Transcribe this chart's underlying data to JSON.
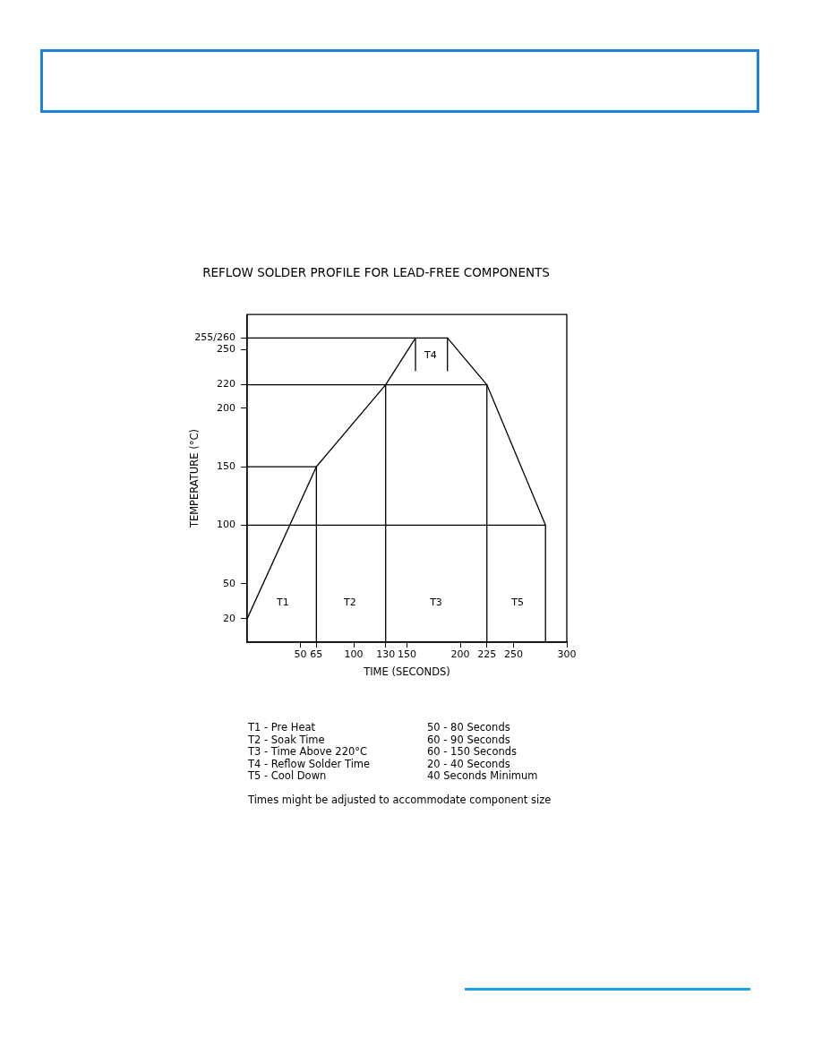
{
  "chart_data": {
    "type": "line",
    "title": "REFLOW SOLDER PROFILE FOR LEAD-FREE COMPONENTS",
    "xlabel": "TIME (SECONDS)",
    "ylabel": "TEMPERATURE (°C)",
    "xlim": [
      0,
      300
    ],
    "xticks": [
      50,
      65,
      100,
      130,
      150,
      200,
      225,
      250,
      300
    ],
    "ylim": [
      0,
      280
    ],
    "yticks": [
      20,
      50,
      100,
      150,
      200,
      220,
      250,
      {
        "value": 260,
        "label": "255/260"
      }
    ],
    "grid": false,
    "legend": false,
    "series": [
      {
        "color": "#000000",
        "x": [
          0,
          65,
          130,
          158,
          188,
          225,
          280
        ],
        "values": [
          20,
          150,
          220,
          260,
          260,
          220,
          100
        ]
      },
      {
        "color": "#000000",
        "x": [
          0,
          65,
          65
        ],
        "values": [
          150,
          150,
          0
        ]
      },
      {
        "color": "#000000",
        "x": [
          0,
          225,
          225
        ],
        "values": [
          220,
          220,
          0
        ]
      },
      {
        "color": "#000000",
        "x": [
          130,
          130
        ],
        "values": [
          220,
          0
        ]
      },
      {
        "color": "#000000",
        "x": [
          0,
          280,
          280
        ],
        "values": [
          100,
          100,
          0
        ]
      },
      {
        "color": "#000000",
        "x": [
          0,
          158
        ],
        "values": [
          260,
          260
        ]
      },
      {
        "color": "#000000",
        "x": [
          158,
          158
        ],
        "values": [
          260,
          232
        ]
      },
      {
        "color": "#000000",
        "x": [
          188,
          188
        ],
        "values": [
          260,
          232
        ]
      }
    ],
    "annotations": [
      "T1",
      "T2",
      "T3",
      "T4",
      "T5",
      "T1 - Pre Heat",
      "50 - 80 Seconds",
      "T2 - Soak Time",
      "60 - 90 Seconds",
      "T3 - Time Above 220°C",
      "60 - 150 Seconds",
      "T4 - Reflow Solder Time",
      "20 - 40 Seconds",
      "T5 - Cool Down",
      "40 Seconds Minimum",
      "Times might be adjusted to accommodate component size"
    ]
  }
}
